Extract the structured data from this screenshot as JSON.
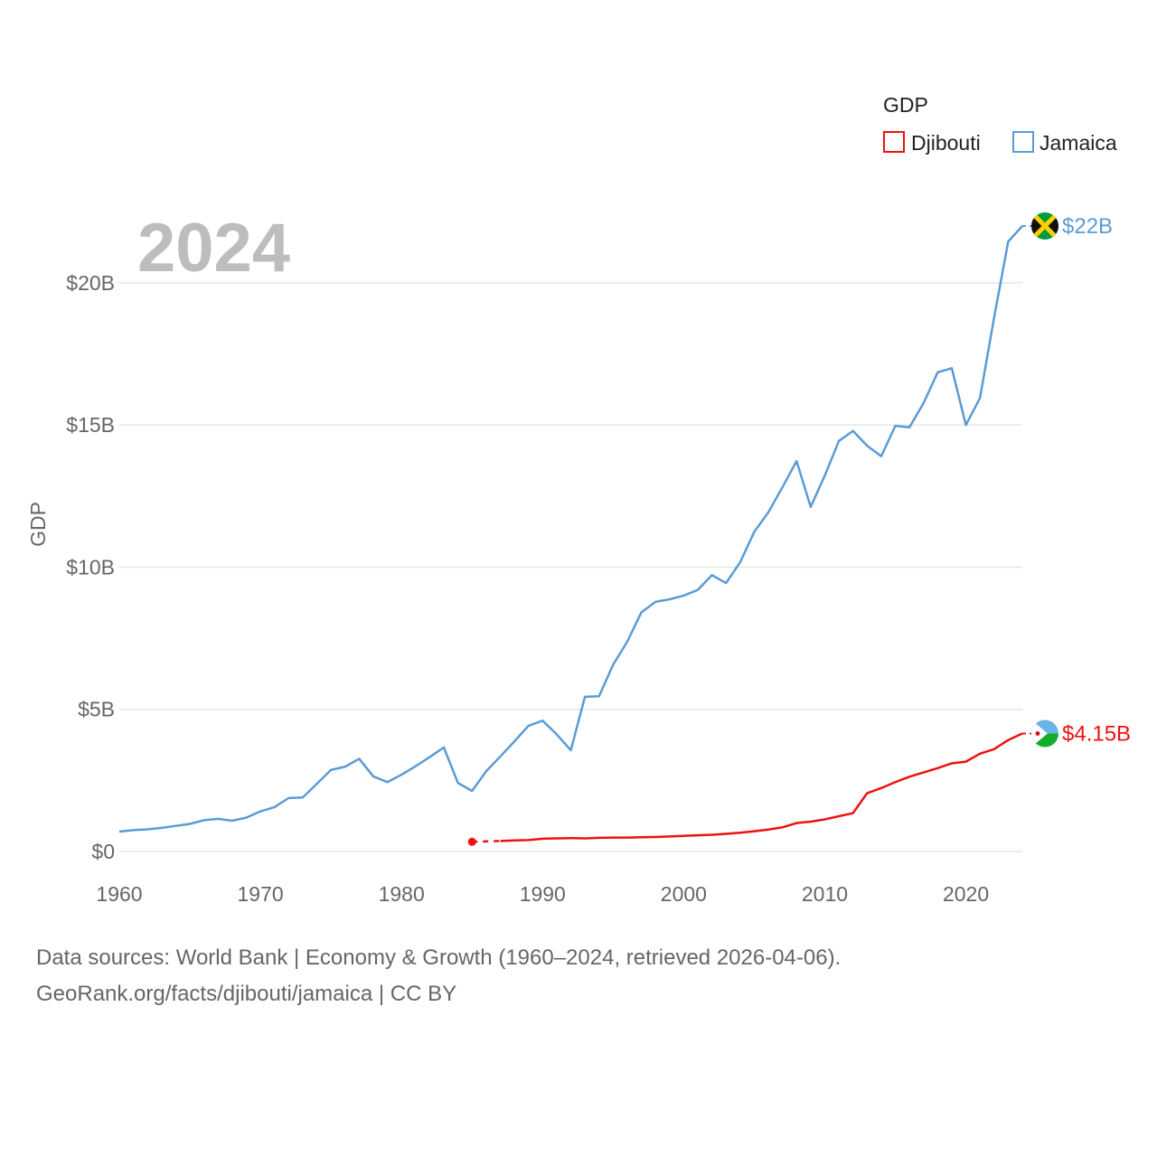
{
  "chart_data": {
    "type": "line",
    "year_watermark": "2024",
    "ylabel": "GDP",
    "xlabel": "",
    "xlim": [
      1960,
      2024
    ],
    "ylim": [
      0,
      22000000000
    ],
    "x_ticks": [
      1960,
      1970,
      1980,
      1990,
      2000,
      2010,
      2020
    ],
    "x_tick_labels": [
      "1960",
      "1970",
      "1980",
      "1990",
      "2000",
      "2010",
      "2020"
    ],
    "y_ticks": [
      0,
      5000000000,
      10000000000,
      15000000000,
      20000000000
    ],
    "y_tick_labels": [
      "$0",
      "$5B",
      "$10B",
      "$15B",
      "$20B"
    ],
    "grid": true,
    "legend": {
      "title": "GDP",
      "placement": "top-right",
      "entries": [
        "Djibouti",
        "Jamaica"
      ]
    },
    "series": [
      {
        "name": "Djibouti",
        "color": "#ee1111",
        "end_label": "$4.15B",
        "flag_icon": "djibouti-flag-icon",
        "dashed_gap": [
          1985,
          1987
        ],
        "start_marker_year": 1985,
        "x": [
          1985,
          1987,
          1988,
          1989,
          1990,
          1991,
          1992,
          1993,
          1994,
          1995,
          1996,
          1997,
          1998,
          1999,
          2000,
          2001,
          2002,
          2003,
          2004,
          2005,
          2006,
          2007,
          2008,
          2009,
          2010,
          2011,
          2012,
          2013,
          2014,
          2015,
          2016,
          2017,
          2018,
          2019,
          2020,
          2021,
          2022,
          2023,
          2024
        ],
        "values": [
          340000000,
          370000000,
          390000000,
          400000000,
          450000000,
          460000000,
          470000000,
          460000000,
          480000000,
          490000000,
          490000000,
          500000000,
          510000000,
          530000000,
          550000000,
          570000000,
          590000000,
          620000000,
          660000000,
          710000000,
          770000000,
          850000000,
          1000000000,
          1050000000,
          1130000000,
          1240000000,
          1350000000,
          2050000000,
          2230000000,
          2440000000,
          2630000000,
          2780000000,
          2930000000,
          3100000000,
          3160000000,
          3440000000,
          3600000000,
          3920000000,
          4150000000
        ]
      },
      {
        "name": "Jamaica",
        "color": "#5b9bd5",
        "end_label": "$22B",
        "flag_icon": "jamaica-flag-icon",
        "x": [
          1960,
          1961,
          1962,
          1963,
          1964,
          1965,
          1966,
          1967,
          1968,
          1969,
          1970,
          1971,
          1972,
          1973,
          1974,
          1975,
          1976,
          1977,
          1978,
          1979,
          1980,
          1981,
          1982,
          1983,
          1984,
          1985,
          1986,
          1987,
          1988,
          1989,
          1990,
          1991,
          1992,
          1993,
          1994,
          1995,
          1996,
          1997,
          1998,
          1999,
          2000,
          2001,
          2002,
          2003,
          2004,
          2005,
          2006,
          2007,
          2008,
          2009,
          2010,
          2011,
          2012,
          2013,
          2014,
          2015,
          2016,
          2017,
          2018,
          2019,
          2020,
          2021,
          2022,
          2023,
          2024
        ],
        "values": [
          700000000,
          750000000,
          780000000,
          830000000,
          900000000,
          970000000,
          1100000000,
          1150000000,
          1080000000,
          1190000000,
          1410000000,
          1560000000,
          1880000000,
          1900000000,
          2380000000,
          2870000000,
          2980000000,
          3260000000,
          2640000000,
          2440000000,
          2700000000,
          3000000000,
          3320000000,
          3660000000,
          2410000000,
          2130000000,
          2820000000,
          3340000000,
          3870000000,
          4420000000,
          4600000000,
          4120000000,
          3560000000,
          5440000000,
          5460000000,
          6570000000,
          7380000000,
          8410000000,
          8780000000,
          8870000000,
          9000000000,
          9200000000,
          9720000000,
          9440000000,
          10170000000,
          11240000000,
          11930000000,
          12810000000,
          13730000000,
          12120000000,
          13220000000,
          14440000000,
          14790000000,
          14270000000,
          13900000000,
          14970000000,
          14920000000,
          15770000000,
          16850000000,
          17000000000,
          15000000000,
          15950000000,
          18780000000,
          21450000000,
          22000000000
        ]
      }
    ]
  },
  "footer": {
    "line1": "Data sources: World Bank | Economy & Growth (1960–2024, retrieved 2026-04-06).",
    "line2": "GeoRank.org/facts/djibouti/jamaica | CC BY"
  }
}
